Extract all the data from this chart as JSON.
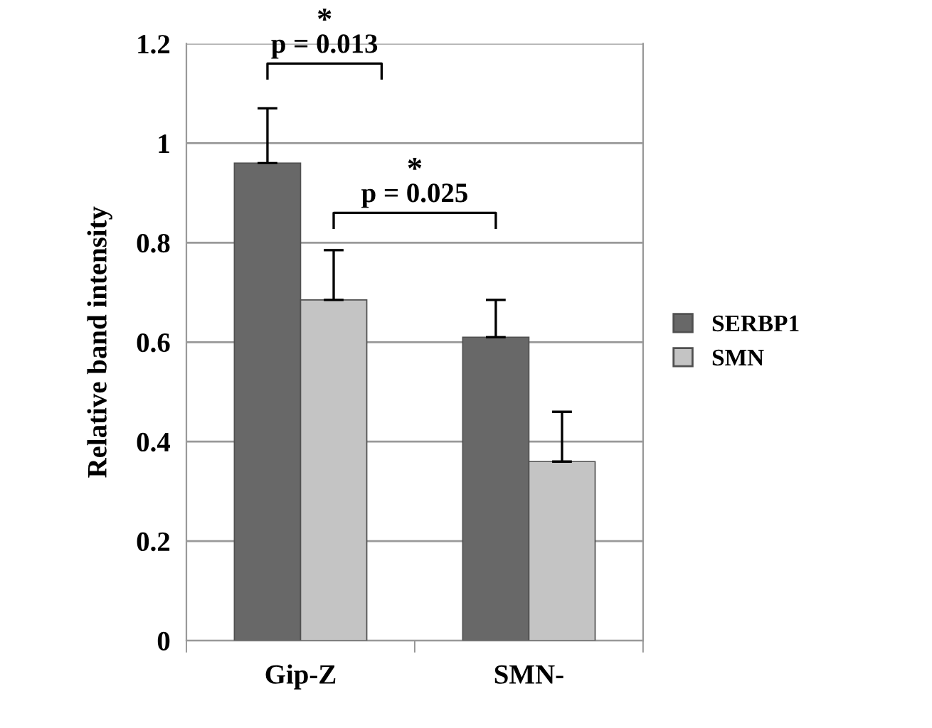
{
  "chart_data": {
    "type": "bar",
    "ylabel": "Relative band intensity",
    "categories": [
      "Gip-Z",
      "SMN-"
    ],
    "series": [
      {
        "name": "SERBP1",
        "color": "#686868",
        "values": [
          0.96,
          0.61
        ],
        "errors": [
          [
            0.96,
            1.07
          ],
          [
            0.61,
            0.685
          ]
        ]
      },
      {
        "name": "SMN",
        "color": "#c4c4c4",
        "values": [
          0.685,
          0.36
        ],
        "errors": [
          [
            0.685,
            0.785
          ],
          [
            0.36,
            0.46
          ]
        ]
      }
    ],
    "ylim": [
      0,
      1.2
    ],
    "yticks": [
      0,
      0.2,
      0.4,
      0.6,
      0.8,
      1,
      1.2
    ],
    "grid": "y",
    "legend": "right",
    "annotations": [
      "*",
      "p = 0.013",
      "*",
      "p = 0.025"
    ]
  }
}
